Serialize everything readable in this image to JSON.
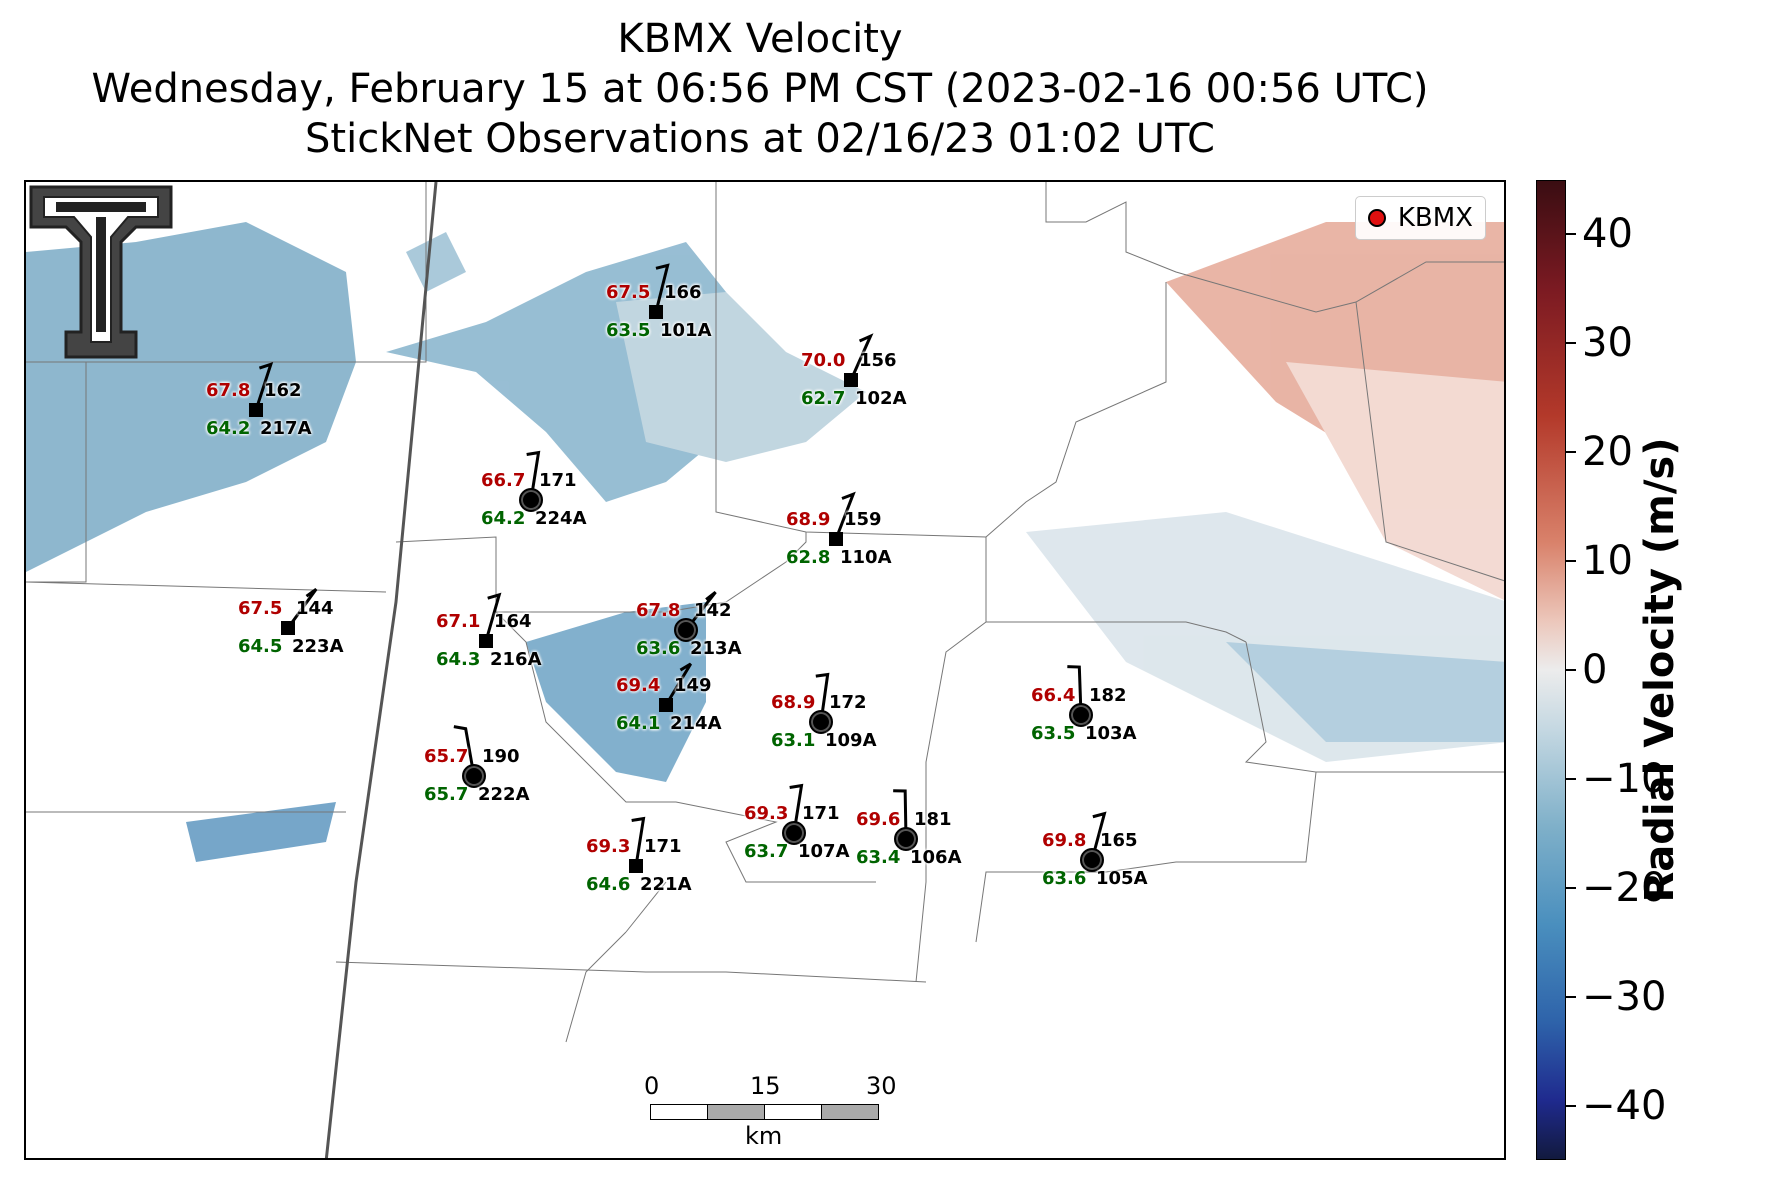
{
  "title": {
    "line1": "KBMX Velocity",
    "line2": "Wednesday, February 15 at 06:56 PM CST (2023-02-16 00:56 UTC)",
    "line3": "StickNet Observations at 02/16/23 01:02 UTC"
  },
  "legend": {
    "label": "KBMX",
    "marker_color": "#e01010"
  },
  "colorbar": {
    "label": "Radial Velocity (m/s)",
    "ticks": [
      "40",
      "30",
      "20",
      "10",
      "0",
      "−10",
      "−20",
      "−30",
      "−40"
    ],
    "range": [
      -45,
      45
    ]
  },
  "scalebar": {
    "labels": [
      "0",
      "15",
      "30"
    ],
    "unit": "km"
  },
  "logo": {
    "name": "texas-tech-double-t-logo"
  },
  "stations": [
    {
      "id": "101A",
      "temp": "67.5",
      "dew": "63.5",
      "dir": "166",
      "marker": "square"
    },
    {
      "id": "102A",
      "temp": "70.0",
      "dew": "62.7",
      "dir": "156",
      "marker": "square"
    },
    {
      "id": "217A",
      "temp": "67.8",
      "dew": "64.2",
      "dir": "162",
      "marker": "square"
    },
    {
      "id": "224A",
      "temp": "66.7",
      "dew": "64.2",
      "dir": "171",
      "marker": "circle"
    },
    {
      "id": "110A",
      "temp": "68.9",
      "dew": "62.8",
      "dir": "159",
      "marker": "square"
    },
    {
      "id": "223A",
      "temp": "67.5",
      "dew": "64.5",
      "dir": "144",
      "marker": "square"
    },
    {
      "id": "216A",
      "temp": "67.1",
      "dew": "64.3",
      "dir": "164",
      "marker": "square"
    },
    {
      "id": "213A",
      "temp": "67.8",
      "dew": "63.6",
      "dir": "142",
      "marker": "circle"
    },
    {
      "id": "214A",
      "temp": "69.4",
      "dew": "64.1",
      "dir": "149",
      "marker": "square"
    },
    {
      "id": "109A",
      "temp": "68.9",
      "dew": "63.1",
      "dir": "172",
      "marker": "circle"
    },
    {
      "id": "103A",
      "temp": "66.4",
      "dew": "63.5",
      "dir": "182",
      "marker": "circle"
    },
    {
      "id": "222A",
      "temp": "65.7",
      "dew": "65.7",
      "dir": "190",
      "marker": "circle"
    },
    {
      "id": "107A",
      "temp": "69.3",
      "dew": "63.7",
      "dir": "171",
      "marker": "circle"
    },
    {
      "id": "106A",
      "temp": "69.6",
      "dew": "63.4",
      "dir": "181",
      "marker": "circle"
    },
    {
      "id": "105A",
      "temp": "69.8",
      "dew": "63.6",
      "dir": "165",
      "marker": "circle"
    },
    {
      "id": "221A",
      "temp": "69.3",
      "dew": "64.6",
      "dir": "171",
      "marker": "square"
    }
  ],
  "colors": {
    "inbound": "#4a8fbe",
    "outbound": "#d9826b",
    "temp_text": "#b00000",
    "dew_text": "#006400"
  }
}
